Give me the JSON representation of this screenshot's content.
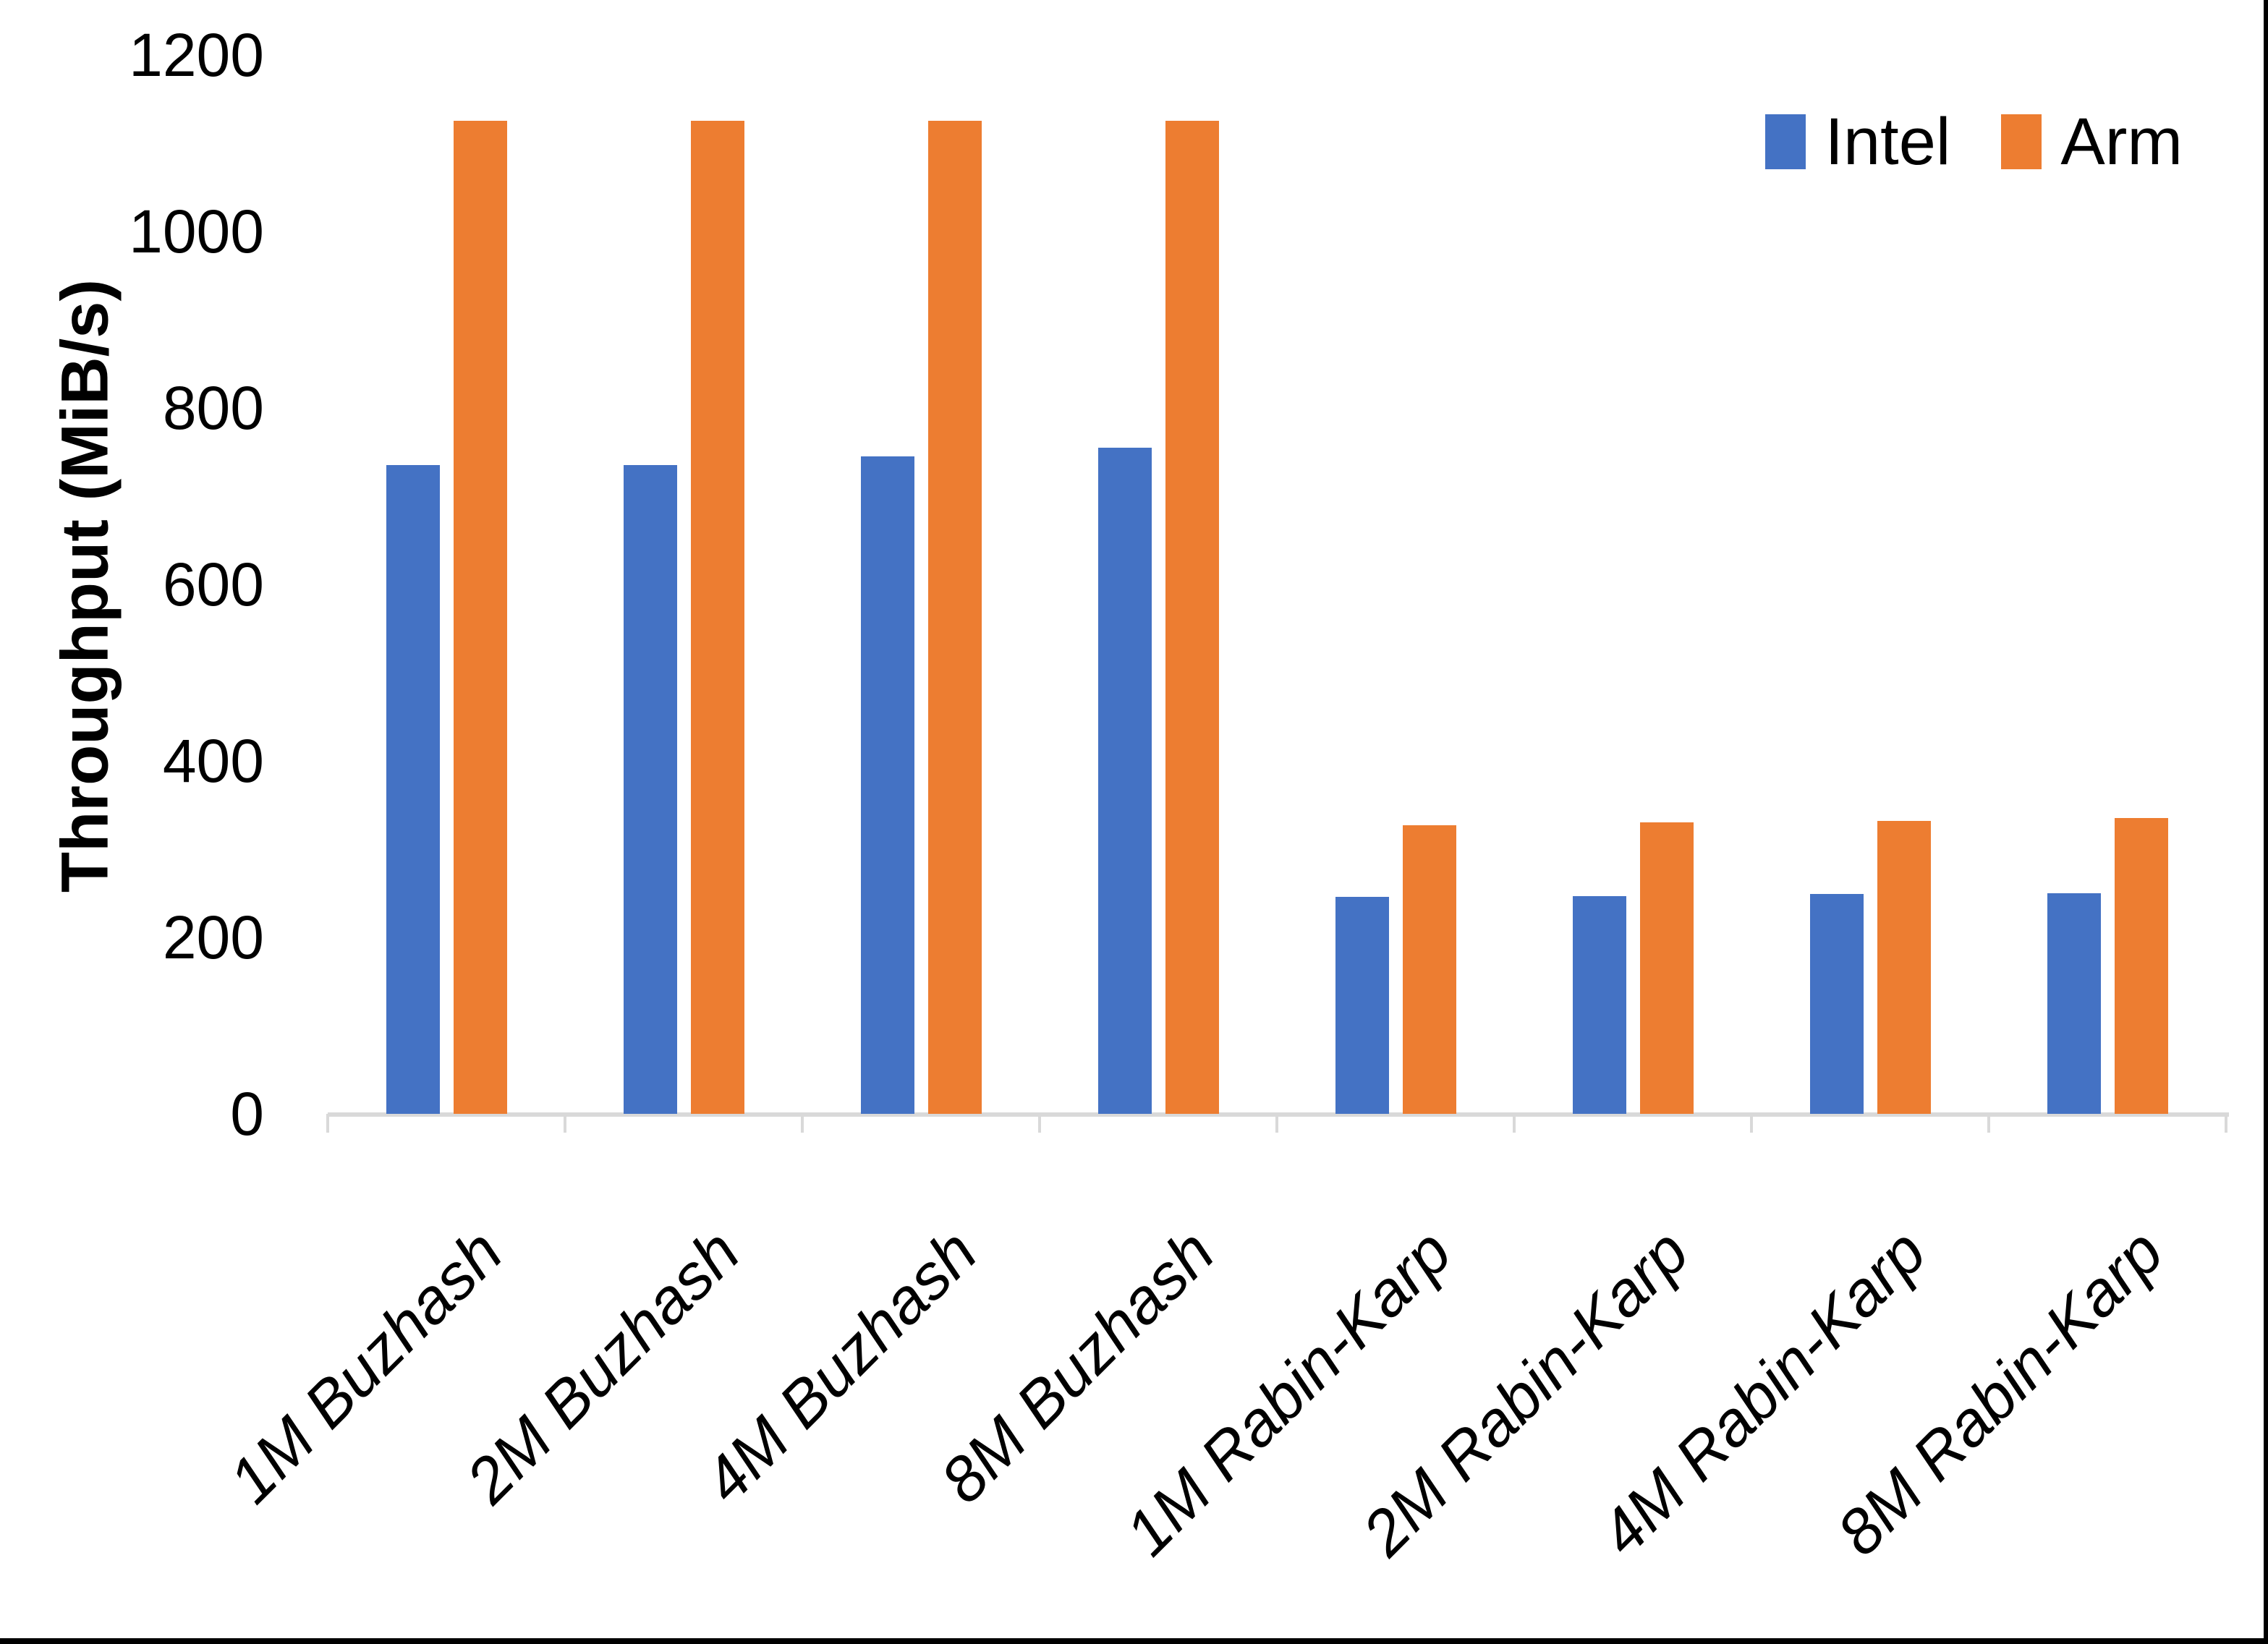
{
  "chart_data": {
    "type": "bar",
    "title": "",
    "ylabel": "Throughput (MiB/s)",
    "xlabel": "",
    "ylim": [
      0,
      1200
    ],
    "ytick_step": 200,
    "yticks": [
      0,
      200,
      400,
      600,
      800,
      1000,
      1200
    ],
    "grid": false,
    "legend_position": "top-right",
    "categories": [
      "1M Buzhash",
      "2M Buzhash",
      "4M Buzhash",
      "8M Buzhash",
      "1M Rabin-Karp",
      "2M Rabin-Karp",
      "4M Rabin-Karp",
      "8M Rabin-Karp"
    ],
    "series": [
      {
        "name": "Intel",
        "color": "#4472C4",
        "values": [
          735,
          735,
          745,
          755,
          246,
          247,
          249,
          250
        ]
      },
      {
        "name": "Arm",
        "color": "#ED7D31",
        "values": [
          1125,
          1125,
          1125,
          1125,
          327,
          330,
          332,
          335
        ]
      }
    ]
  },
  "colors": {
    "axis_line": "#D9D9D9",
    "text": "#000000",
    "background": "#FFFFFF",
    "frame": "#000000"
  }
}
